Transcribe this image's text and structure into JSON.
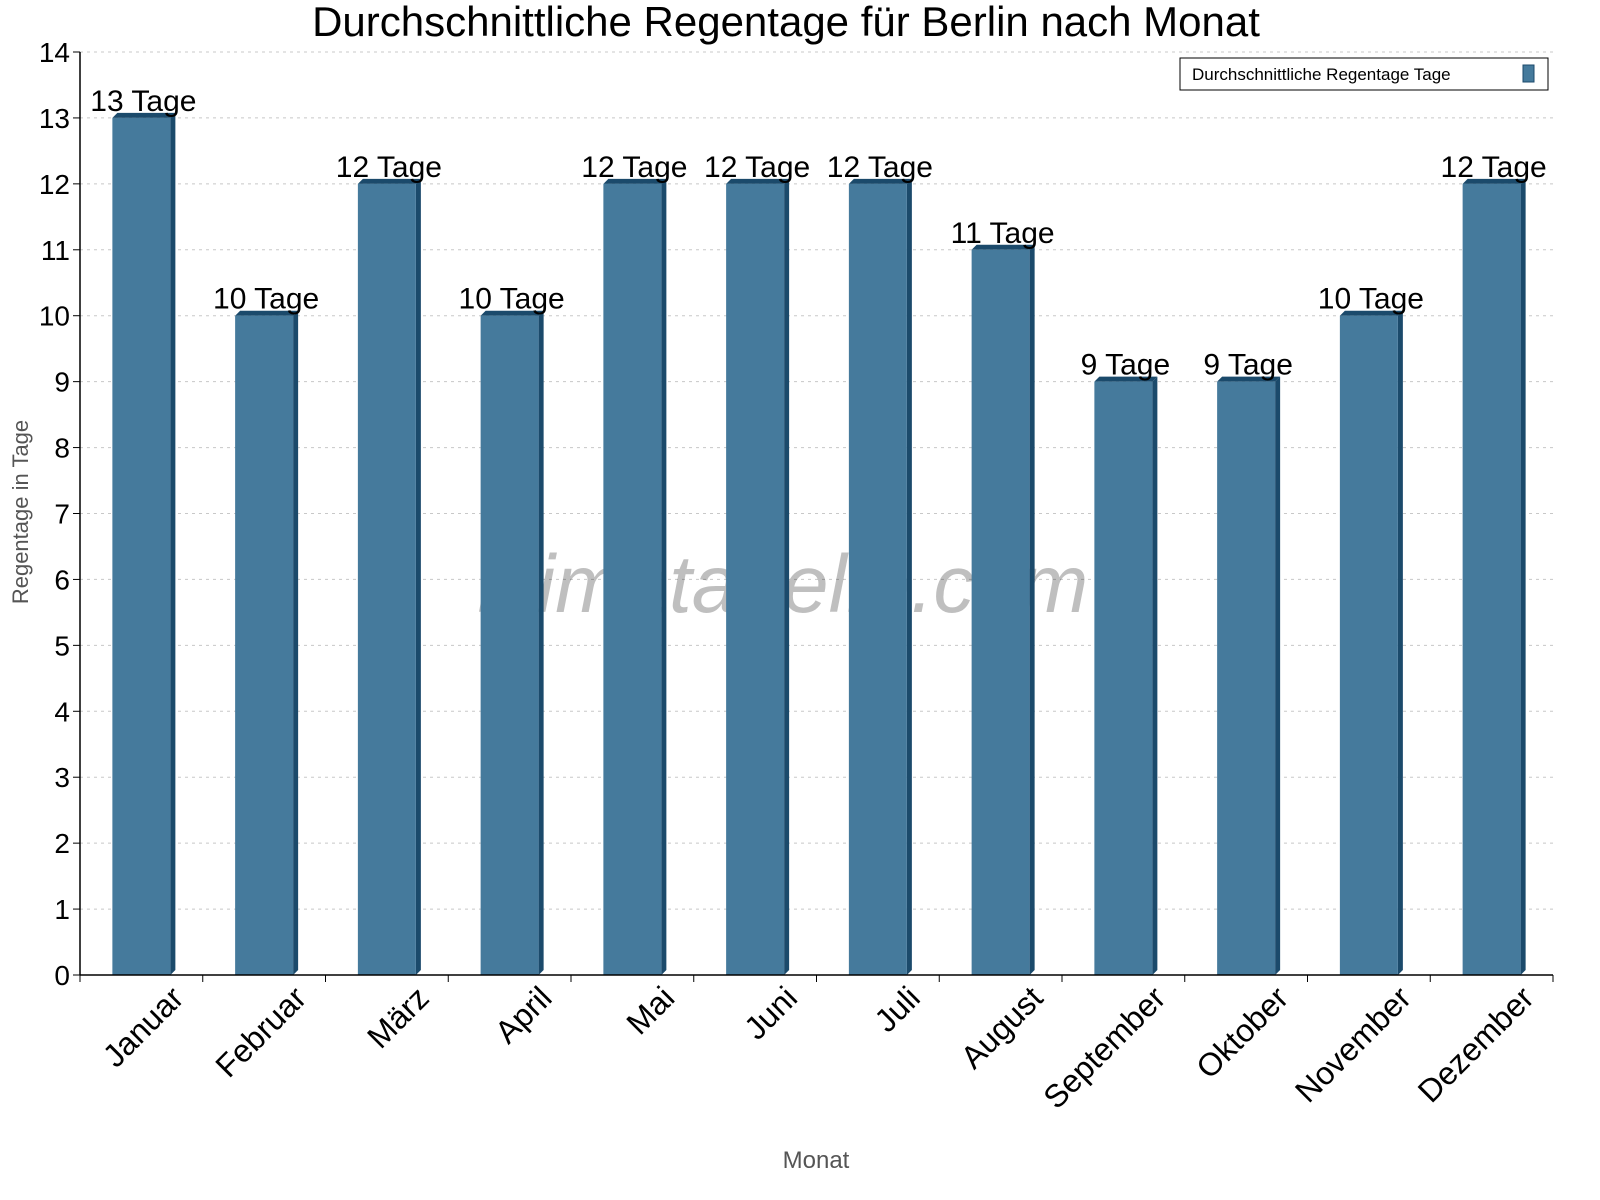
{
  "chart_data": {
    "type": "bar",
    "title": "Durchschnittliche Regentage für Berlin nach Monat",
    "xlabel": "Monat",
    "ylabel": "Regentage in Tage",
    "categories": [
      "Januar",
      "Februar",
      "März",
      "April",
      "Mai",
      "Juni",
      "Juli",
      "August",
      "September",
      "Oktober",
      "November",
      "Dezember"
    ],
    "series": [
      {
        "name": "Durchschnittliche Regentage Tage",
        "values": [
          13,
          10,
          12,
          10,
          12,
          12,
          12,
          11,
          9,
          9,
          10,
          12
        ]
      }
    ],
    "data_labels": [
      "13 Tage",
      "10 Tage",
      "12 Tage",
      "10 Tage",
      "12 Tage",
      "12 Tage",
      "12 Tage",
      "11 Tage",
      "9 Tage",
      "9 Tage",
      "10 Tage",
      "12 Tage"
    ],
    "ylim": [
      0,
      14
    ],
    "yticks": [
      0,
      1,
      2,
      3,
      4,
      5,
      6,
      7,
      8,
      9,
      10,
      11,
      12,
      13,
      14
    ],
    "grid": true,
    "legend": "top-right",
    "watermark": "klimatabelle.com",
    "colors": {
      "bar": "#457a9c",
      "bar_side": "#1b4a6b",
      "grid": "#c8c8c8"
    }
  }
}
